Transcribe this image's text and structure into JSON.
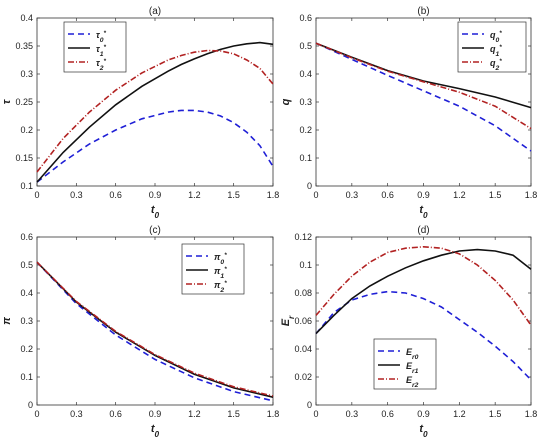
{
  "chart_data": [
    {
      "type": "line",
      "panel": "(a)",
      "xlabel": "t0",
      "ylabel": "τ",
      "xlim": [
        0,
        1.8
      ],
      "ylim": [
        0.1,
        0.4
      ],
      "xticks": [
        "0",
        "0.3",
        "0.6",
        "0.9",
        "1.2",
        "1.5",
        "1.8"
      ],
      "yticks": [
        "0.1",
        "0.15",
        "0.2",
        "0.25",
        "0.3",
        "0.35",
        "0.4"
      ],
      "legend": "top-left",
      "x": [
        0,
        0.2,
        0.4,
        0.6,
        0.8,
        1.0,
        1.1,
        1.2,
        1.3,
        1.4,
        1.5,
        1.6,
        1.7,
        1.8
      ],
      "series": [
        {
          "name": "τ0*",
          "color": "#1f1fd6",
          "dash": "6,4",
          "values": [
            0.107,
            0.143,
            0.175,
            0.2,
            0.22,
            0.232,
            0.235,
            0.235,
            0.232,
            0.225,
            0.213,
            0.196,
            0.172,
            0.135
          ]
        },
        {
          "name": "τ1*",
          "color": "#111111",
          "dash": "",
          "values": [
            0.107,
            0.16,
            0.205,
            0.245,
            0.278,
            0.305,
            0.317,
            0.327,
            0.336,
            0.344,
            0.35,
            0.354,
            0.356,
            0.353
          ]
        },
        {
          "name": "τ2*",
          "color": "#b22222",
          "dash": "6,2,1,2",
          "values": [
            0.125,
            0.185,
            0.232,
            0.271,
            0.302,
            0.325,
            0.333,
            0.339,
            0.342,
            0.341,
            0.336,
            0.325,
            0.31,
            0.282
          ]
        }
      ]
    },
    {
      "type": "line",
      "panel": "(b)",
      "xlabel": "t0",
      "ylabel": "q",
      "xlim": [
        0,
        1.8
      ],
      "ylim": [
        0,
        0.6
      ],
      "xticks": [
        "0",
        "0.3",
        "0.6",
        "0.9",
        "1.2",
        "1.5",
        "1.8"
      ],
      "yticks": [
        "0",
        "0.1",
        "0.2",
        "0.3",
        "0.4",
        "0.5",
        "0.6"
      ],
      "legend": "top-right",
      "x": [
        0,
        0.3,
        0.6,
        0.9,
        1.2,
        1.5,
        1.8
      ],
      "series": [
        {
          "name": "q0*",
          "color": "#1f1fd6",
          "dash": "6,4",
          "values": [
            0.51,
            0.452,
            0.395,
            0.34,
            0.285,
            0.215,
            0.125
          ]
        },
        {
          "name": "q1*",
          "color": "#111111",
          "dash": "",
          "values": [
            0.51,
            0.46,
            0.412,
            0.375,
            0.348,
            0.318,
            0.28
          ]
        },
        {
          "name": "q2*",
          "color": "#b22222",
          "dash": "6,2,1,2",
          "values": [
            0.51,
            0.458,
            0.41,
            0.372,
            0.335,
            0.285,
            0.205
          ]
        }
      ]
    },
    {
      "type": "line",
      "panel": "(c)",
      "xlabel": "t0",
      "ylabel": "π",
      "xlim": [
        0,
        1.8
      ],
      "ylim": [
        0,
        0.6
      ],
      "xticks": [
        "0",
        "0.3",
        "0.6",
        "0.9",
        "1.2",
        "1.5",
        "1.8"
      ],
      "yticks": [
        "0",
        "0.1",
        "0.2",
        "0.3",
        "0.4",
        "0.5",
        "0.6"
      ],
      "legend": "top-right",
      "x": [
        0,
        0.3,
        0.6,
        0.9,
        1.2,
        1.5,
        1.8
      ],
      "series": [
        {
          "name": "π0*",
          "color": "#1f1fd6",
          "dash": "6,4",
          "values": [
            0.51,
            0.362,
            0.25,
            0.163,
            0.097,
            0.048,
            0.015
          ]
        },
        {
          "name": "π1*",
          "color": "#111111",
          "dash": "",
          "values": [
            0.51,
            0.368,
            0.26,
            0.177,
            0.11,
            0.061,
            0.028
          ]
        },
        {
          "name": "π2*",
          "color": "#b22222",
          "dash": "6,2,1,2",
          "values": [
            0.51,
            0.37,
            0.263,
            0.18,
            0.114,
            0.065,
            0.032
          ]
        }
      ]
    },
    {
      "type": "line",
      "panel": "(d)",
      "xlabel": "t0",
      "ylabel": "Er",
      "xlim": [
        0,
        1.8
      ],
      "ylim": [
        0,
        0.12
      ],
      "xticks": [
        "0",
        "0.3",
        "0.6",
        "0.9",
        "1.2",
        "1.5",
        "1.8"
      ],
      "yticks": [
        "0",
        "0.02",
        "0.04",
        "0.06",
        "0.08",
        "0.1",
        "0.12"
      ],
      "legend": "bottom-left",
      "x": [
        0,
        0.15,
        0.3,
        0.45,
        0.6,
        0.75,
        0.9,
        1.05,
        1.2,
        1.35,
        1.5,
        1.65,
        1.8
      ],
      "series": [
        {
          "name": "Er0",
          "color": "#1f1fd6",
          "dash": "6,4",
          "values": [
            0.051,
            0.066,
            0.075,
            0.079,
            0.081,
            0.08,
            0.076,
            0.07,
            0.061,
            0.052,
            0.042,
            0.031,
            0.018
          ]
        },
        {
          "name": "Er1",
          "color": "#111111",
          "dash": "",
          "values": [
            0.051,
            0.064,
            0.076,
            0.085,
            0.092,
            0.098,
            0.103,
            0.107,
            0.11,
            0.111,
            0.11,
            0.107,
            0.097
          ]
        },
        {
          "name": "Er2",
          "color": "#b22222",
          "dash": "6,2,1,2",
          "values": [
            0.064,
            0.079,
            0.092,
            0.102,
            0.109,
            0.112,
            0.113,
            0.112,
            0.108,
            0.1,
            0.089,
            0.075,
            0.057
          ]
        }
      ]
    }
  ]
}
